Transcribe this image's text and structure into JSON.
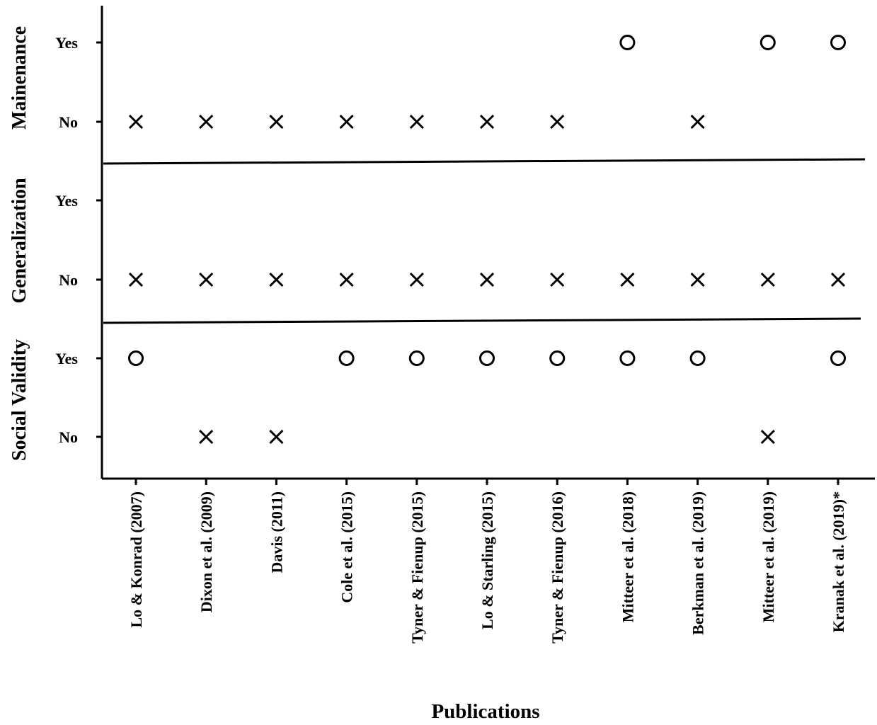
{
  "chart_data": {
    "type": "scatter",
    "xlabel": "Publications",
    "categories": [
      "Lo & Konrad (2007)",
      "Dixon et al. (2009)",
      "Davis (2011)",
      "Cole et al. (2015)",
      "Tyner & Fienup (2015)",
      "Lo & Starling (2015)",
      "Tyner & Fienup (2016)",
      "Mitteer et al. (2018)",
      "Berkman et al. (2019)",
      "Mitteer et al. (2019)",
      "Kranak et al. (2019)*"
    ],
    "panels": [
      {
        "name": "Mainenance",
        "levels": [
          "Yes",
          "No"
        ],
        "values": [
          "No",
          "No",
          "No",
          "No",
          "No",
          "No",
          "No",
          "Yes",
          "No",
          "Yes",
          "Yes"
        ]
      },
      {
        "name": "Generalization",
        "levels": [
          "Yes",
          "No"
        ],
        "values": [
          "No",
          "No",
          "No",
          "No",
          "No",
          "No",
          "No",
          "No",
          "No",
          "No",
          "No"
        ]
      },
      {
        "name": "Social Validity",
        "levels": [
          "Yes",
          "No"
        ],
        "values": [
          "Yes",
          "No",
          "No",
          "Yes",
          "Yes",
          "Yes",
          "Yes",
          "Yes",
          "Yes",
          "No",
          "Yes"
        ]
      }
    ],
    "markers": {
      "Yes": "circle",
      "No": "cross"
    },
    "grid": false,
    "legend": "none"
  }
}
